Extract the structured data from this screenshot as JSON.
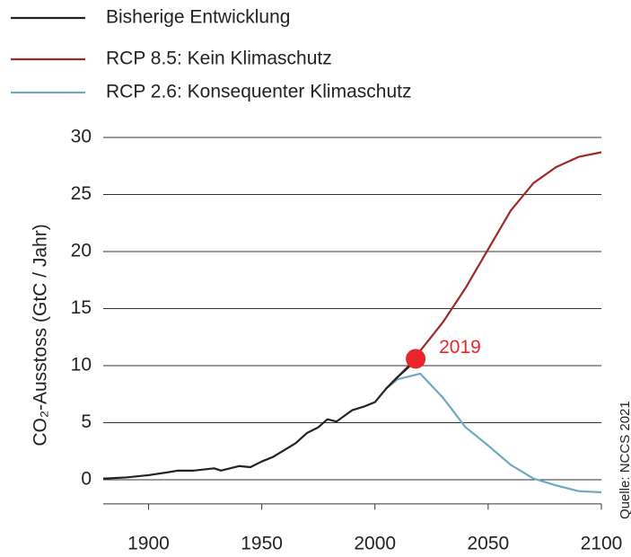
{
  "chart_data": {
    "type": "line",
    "y_label": "CO₂-Ausstoss (GtC / Jahr)",
    "source": "Quelle: NCCS 2021",
    "xlim": [
      1880,
      2100
    ],
    "xticks": [
      1900,
      1950,
      2000,
      2050,
      2100
    ],
    "ylim": [
      -2,
      30
    ],
    "yticks": [
      0,
      5,
      10,
      15,
      20,
      25,
      30
    ],
    "grid": true,
    "legend": "top-left",
    "series": [
      {
        "name": "Bisherige Entwicklung",
        "color": "#222222",
        "x": [
          1880,
          1890,
          1900,
          1910,
          1913,
          1920,
          1929,
          1932,
          1940,
          1945,
          1950,
          1955,
          1960,
          1965,
          1970,
          1975,
          1979,
          1983,
          1990,
          1995,
          2000,
          2005,
          2010,
          2015,
          2018
        ],
        "values": [
          0.1,
          0.2,
          0.4,
          0.7,
          0.8,
          0.8,
          1.0,
          0.8,
          1.2,
          1.1,
          1.6,
          2.0,
          2.6,
          3.2,
          4.1,
          4.6,
          5.3,
          5.1,
          6.1,
          6.4,
          6.8,
          8.0,
          9.0,
          9.9,
          10.6
        ]
      },
      {
        "name": "RCP 8.5: Kein Klimaschutz",
        "color": "#9c2a26",
        "x": [
          2005,
          2010,
          2018,
          2020,
          2030,
          2040,
          2050,
          2060,
          2070,
          2080,
          2090,
          2100
        ],
        "values": [
          8.0,
          9.0,
          10.6,
          11.3,
          13.8,
          16.8,
          20.2,
          23.6,
          26.0,
          27.4,
          28.3,
          28.7
        ]
      },
      {
        "name": "RCP 2.6: Konsequenter Klimaschutz",
        "color": "#6fa8c0",
        "x": [
          2005,
          2010,
          2020,
          2030,
          2040,
          2050,
          2060,
          2070,
          2080,
          2090,
          2100
        ],
        "values": [
          8.0,
          8.8,
          9.3,
          7.2,
          4.6,
          3.0,
          1.3,
          0.1,
          -0.5,
          -1.0,
          -1.1
        ]
      }
    ],
    "annotations": [
      {
        "text": "2019",
        "x": 2018,
        "y": 10.6,
        "color": "#e8262b"
      }
    ]
  }
}
